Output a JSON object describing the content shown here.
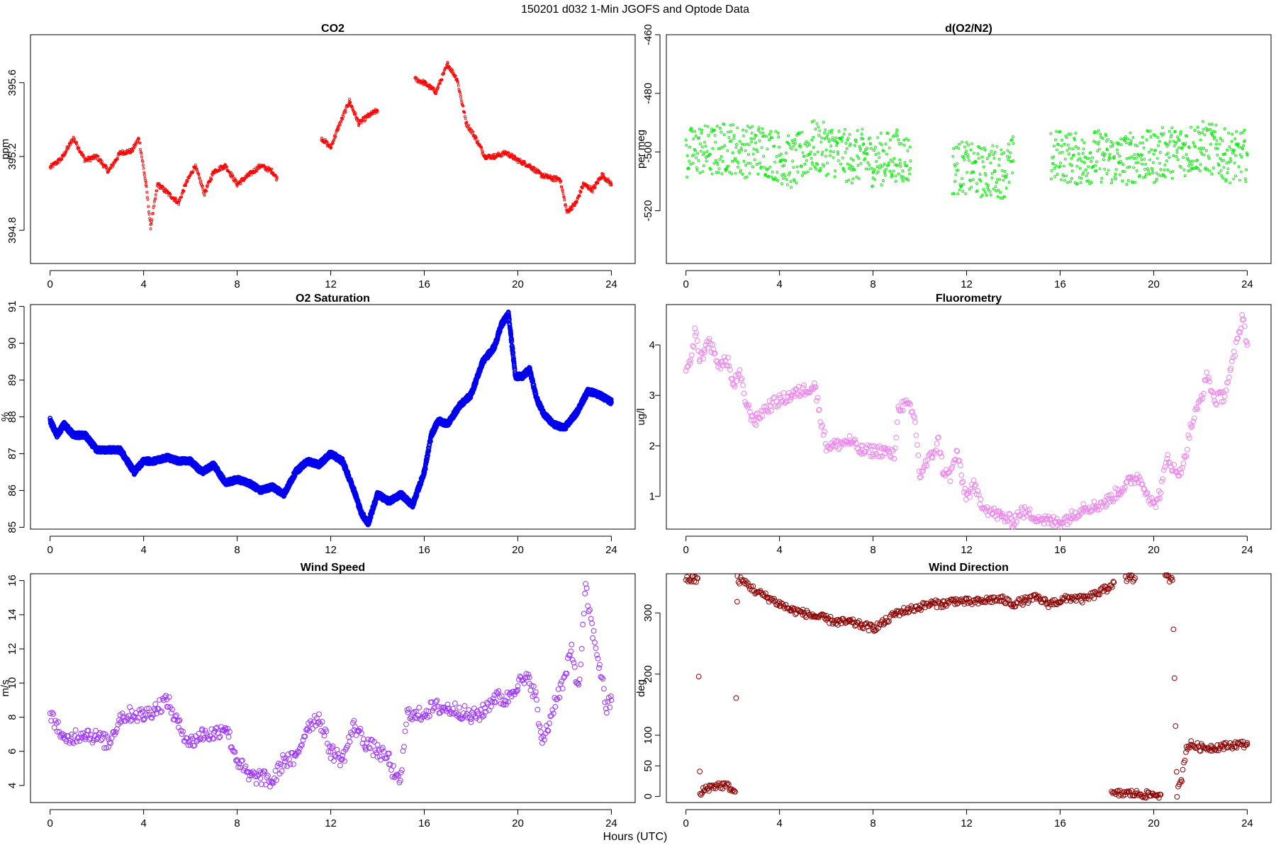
{
  "figure": {
    "title": "150201   d032   1-Min  JGOFS and Optode Data",
    "xlabel": "Hours (UTC)"
  },
  "chart_data": [
    {
      "id": "co2",
      "type": "scatter",
      "title": "CO2",
      "ylabel": "ppm",
      "color": "#ff0000",
      "marker": "small",
      "xlim": [
        0,
        24
      ],
      "ylim": [
        394.62,
        395.86
      ],
      "xticks": [
        0,
        4,
        8,
        12,
        16,
        20,
        24
      ],
      "yticks": [
        394.8,
        395.2,
        395.6
      ],
      "ytick_labels": [
        "394.8",
        "395.2",
        "395.6"
      ],
      "ytick_rotate": true,
      "x": [
        0.0,
        0.5,
        1.0,
        1.5,
        2.0,
        2.5,
        3.0,
        3.5,
        3.8,
        4.1,
        4.3,
        4.6,
        5.5,
        5.8,
        6.2,
        6.6,
        7.0,
        7.5,
        8.0,
        8.5,
        9.0,
        9.5,
        9.7,
        11.6,
        12.0,
        12.3,
        12.8,
        13.2,
        13.6,
        14.0,
        15.6,
        16.0,
        16.5,
        17.0,
        17.4,
        17.8,
        18.2,
        18.6,
        19.0,
        19.5,
        20.0,
        20.5,
        21.0,
        21.5,
        21.8,
        22.1,
        22.5,
        22.8,
        23.2,
        23.6,
        24.0
      ],
      "y": [
        395.14,
        395.19,
        395.3,
        395.18,
        395.2,
        395.12,
        395.22,
        395.23,
        395.3,
        395.05,
        394.82,
        395.05,
        394.95,
        395.05,
        395.15,
        395.0,
        395.12,
        395.15,
        395.05,
        395.1,
        395.15,
        395.12,
        395.08,
        395.3,
        395.25,
        395.35,
        395.5,
        395.38,
        395.42,
        395.45,
        395.62,
        395.6,
        395.55,
        395.7,
        395.62,
        395.38,
        395.3,
        395.2,
        395.2,
        395.22,
        395.18,
        395.15,
        395.1,
        395.08,
        395.08,
        394.9,
        394.95,
        395.05,
        395.02,
        395.1,
        395.05
      ]
    },
    {
      "id": "do2n2",
      "type": "scatter",
      "title": "d(O2/N2)",
      "ylabel": "per meg",
      "color": "#00ee00",
      "marker": "small",
      "xlim": [
        0,
        24
      ],
      "ylim": [
        -538,
        -460
      ],
      "xticks": [
        0,
        4,
        8,
        12,
        16,
        20,
        24
      ],
      "yticks": [
        -520,
        -500,
        -480,
        -460
      ],
      "ytick_labels": [
        "-520",
        "-500",
        "-480",
        "-460"
      ],
      "ytick_rotate": true,
      "x": [
        0.0,
        0.6,
        1.2,
        1.8,
        2.4,
        3.0,
        3.6,
        4.1,
        4.6,
        5.4,
        6.0,
        6.5,
        7.0,
        7.6,
        8.0,
        8.5,
        9.0,
        9.6,
        11.4,
        11.8,
        12.2,
        12.8,
        13.2,
        13.6,
        14.0,
        15.6,
        16.0,
        16.5,
        17.0,
        17.5,
        18.0,
        18.5,
        19.0,
        19.5,
        20.0,
        20.5,
        21.0,
        21.5,
        22.0,
        22.5,
        23.0,
        23.5,
        24.0
      ],
      "y": [
        -501,
        -499,
        -500,
        -498,
        -500,
        -499,
        -500,
        -502,
        -504,
        -498,
        -499,
        -500,
        -502,
        -501,
        -503,
        -502,
        -501,
        -503,
        -506,
        -505,
        -506,
        -507,
        -506,
        -507,
        -503,
        -502,
        -501,
        -502,
        -503,
        -501,
        -502,
        -503,
        -502,
        -501,
        -502,
        -500,
        -500,
        -499,
        -498,
        -499,
        -501,
        -502,
        -501
      ],
      "spread": 9
    },
    {
      "id": "o2sat",
      "type": "scatter",
      "title": "O2 Saturation",
      "ylabel": "%",
      "color": "#0000ee",
      "marker": "thick",
      "xlim": [
        0,
        24
      ],
      "ylim": [
        84.95,
        91.05
      ],
      "xticks": [
        0,
        4,
        8,
        12,
        16,
        20,
        24
      ],
      "yticks": [
        85,
        86,
        87,
        88,
        89,
        90,
        91
      ],
      "ytick_labels": [
        "85",
        "86",
        "87",
        "88",
        "89",
        "90",
        "91"
      ],
      "ytick_rotate": true,
      "x": [
        0.0,
        0.3,
        0.6,
        1.0,
        1.5,
        2.0,
        2.5,
        3.0,
        3.3,
        3.6,
        4.0,
        4.5,
        5.0,
        5.5,
        6.0,
        6.5,
        7.0,
        7.5,
        8.0,
        8.5,
        9.0,
        9.5,
        10.0,
        10.5,
        11.0,
        11.5,
        12.0,
        12.5,
        13.0,
        13.3,
        13.6,
        13.8,
        14.0,
        14.5,
        15.0,
        15.5,
        16.0,
        16.3,
        16.6,
        17.0,
        17.5,
        18.0,
        18.5,
        19.0,
        19.3,
        19.6,
        19.9,
        20.2,
        20.5,
        20.8,
        21.1,
        21.5,
        22.0,
        22.5,
        23.0,
        23.5,
        24.0
      ],
      "y": [
        87.9,
        87.5,
        87.8,
        87.5,
        87.5,
        87.1,
        87.1,
        87.1,
        86.8,
        86.5,
        86.8,
        86.8,
        86.9,
        86.8,
        86.8,
        86.5,
        86.7,
        86.2,
        86.3,
        86.2,
        86.0,
        86.1,
        85.9,
        86.5,
        86.8,
        86.7,
        87.0,
        86.8,
        86.0,
        85.4,
        85.1,
        85.5,
        85.9,
        85.7,
        85.9,
        85.6,
        86.5,
        87.5,
        87.9,
        87.8,
        88.3,
        88.6,
        89.5,
        89.9,
        90.5,
        90.8,
        89.1,
        89.1,
        89.3,
        88.5,
        88.1,
        87.8,
        87.7,
        88.1,
        88.7,
        88.6,
        88.4
      ],
      "spread": 0.07
    },
    {
      "id": "fluor",
      "type": "scatter",
      "title": "Fluorometry",
      "ylabel": "ug/l",
      "color": "#ee82ee",
      "marker": "open",
      "xlim": [
        0,
        24
      ],
      "ylim": [
        0.35,
        4.8
      ],
      "xticks": [
        0,
        4,
        8,
        12,
        16,
        20,
        24
      ],
      "yticks": [
        1,
        2,
        3,
        4
      ],
      "ytick_labels": [
        "1",
        "2",
        "3",
        "4"
      ],
      "ytick_rotate": false,
      "x": [
        0.0,
        0.2,
        0.4,
        0.6,
        0.8,
        1.0,
        1.2,
        1.5,
        1.8,
        2.0,
        2.3,
        2.6,
        2.8,
        3.0,
        3.3,
        3.6,
        4.0,
        4.5,
        5.0,
        5.5,
        5.7,
        6.0,
        6.3,
        7.0,
        7.5,
        8.0,
        8.5,
        8.9,
        9.1,
        9.5,
        9.8,
        10.0,
        10.2,
        10.5,
        10.8,
        11.0,
        11.3,
        11.6,
        11.8,
        12.0,
        12.3,
        12.6,
        13.0,
        13.5,
        14.0,
        14.3,
        15.0,
        15.5,
        16.0,
        16.5,
        17.0,
        17.5,
        18.0,
        18.5,
        19.0,
        19.3,
        19.6,
        20.0,
        20.3,
        20.6,
        21.0,
        21.3,
        21.6,
        22.0,
        22.3,
        22.6,
        23.0,
        23.3,
        23.6,
        23.8,
        24.0
      ],
      "y": [
        3.5,
        3.6,
        4.3,
        3.7,
        3.9,
        4.1,
        3.8,
        3.6,
        3.7,
        3.2,
        3.4,
        2.8,
        2.6,
        2.5,
        2.7,
        2.8,
        2.9,
        3.0,
        3.1,
        3.2,
        2.7,
        2.0,
        2.0,
        2.1,
        1.9,
        1.9,
        1.9,
        1.8,
        2.8,
        2.8,
        2.5,
        1.4,
        1.6,
        1.8,
        2.1,
        1.5,
        1.4,
        1.9,
        1.3,
        1.0,
        1.2,
        0.9,
        0.7,
        0.6,
        0.5,
        0.7,
        0.6,
        0.5,
        0.5,
        0.6,
        0.8,
        0.8,
        0.9,
        1.1,
        1.3,
        1.4,
        1.2,
        0.8,
        1.1,
        1.8,
        1.4,
        1.7,
        2.4,
        2.9,
        3.4,
        2.9,
        3.0,
        3.5,
        4.1,
        4.6,
        4.0
      ],
      "spread": 0.12
    },
    {
      "id": "windspd",
      "type": "scatter",
      "title": "Wind Speed",
      "ylabel": "m/s",
      "color": "#9b30ff",
      "marker": "open",
      "xlim": [
        0,
        24
      ],
      "ylim": [
        3.0,
        16.4
      ],
      "xticks": [
        0,
        4,
        8,
        12,
        16,
        20,
        24
      ],
      "yticks": [
        4,
        6,
        8,
        10,
        12,
        14,
        16
      ],
      "ytick_labels": [
        "4",
        "6",
        "8",
        "10",
        "12",
        "14",
        "16"
      ],
      "ytick_rotate": true,
      "x": [
        0.0,
        0.3,
        0.6,
        1.0,
        1.5,
        2.0,
        2.5,
        3.0,
        3.5,
        4.0,
        4.5,
        5.0,
        5.5,
        6.0,
        6.5,
        7.0,
        7.5,
        8.0,
        8.5,
        9.0,
        9.5,
        10.0,
        10.5,
        11.0,
        11.5,
        12.0,
        12.5,
        13.0,
        13.5,
        14.0,
        14.5,
        14.8,
        15.0,
        15.3,
        15.6,
        16.0,
        16.5,
        17.0,
        17.5,
        18.0,
        18.5,
        19.0,
        19.5,
        20.0,
        20.5,
        20.8,
        21.0,
        21.3,
        21.6,
        22.0,
        22.3,
        22.6,
        22.9,
        23.2,
        23.5,
        23.8,
        24.0
      ],
      "y": [
        8.0,
        7.6,
        6.5,
        6.9,
        7.1,
        6.8,
        6.5,
        8.0,
        8.2,
        8.1,
        8.5,
        9.0,
        7.5,
        6.5,
        7.0,
        7.0,
        7.5,
        5.5,
        4.5,
        4.5,
        4.2,
        5.5,
        5.5,
        7.5,
        8.0,
        6.0,
        5.5,
        7.5,
        6.5,
        6.0,
        5.5,
        4.2,
        4.5,
        8.5,
        8.0,
        8.3,
        8.6,
        8.5,
        8.4,
        8.0,
        8.3,
        9.2,
        9.0,
        10.0,
        10.2,
        9.0,
        6.5,
        7.5,
        9.0,
        10.2,
        12.0,
        9.5,
        15.5,
        13.0,
        11.0,
        8.5,
        9.0
      ],
      "spread": 0.45
    },
    {
      "id": "winddir",
      "type": "scatter",
      "title": "Wind Direction",
      "ylabel": "deg",
      "color": "#8b0000",
      "marker": "open",
      "xlim": [
        0,
        24
      ],
      "ylim": [
        -10,
        364
      ],
      "xticks": [
        0,
        4,
        8,
        12,
        16,
        20,
        24
      ],
      "yticks": [
        0,
        50,
        100,
        200,
        300
      ],
      "ytick_labels": [
        "0",
        "50",
        "100",
        "200",
        "300"
      ],
      "ytick_rotate": true,
      "x": [
        0.0,
        0.3,
        0.5,
        0.6,
        0.8,
        1.0,
        1.3,
        1.6,
        1.9,
        2.1,
        2.2,
        2.6,
        3.0,
        3.5,
        4.0,
        4.5,
        5.0,
        5.5,
        6.0,
        6.5,
        7.0,
        7.5,
        8.0,
        8.5,
        9.0,
        9.5,
        10.0,
        10.5,
        11.0,
        11.5,
        12.0,
        12.5,
        13.0,
        13.5,
        14.0,
        14.5,
        15.0,
        15.5,
        16.0,
        16.5,
        17.0,
        17.5,
        18.0,
        18.3,
        18.2,
        18.6,
        19.0,
        19.7,
        20.0,
        20.3,
        18.8,
        19.2,
        20.5,
        20.8,
        21.0,
        21.2,
        21.4,
        21.6,
        22.0,
        22.5,
        23.0,
        23.5,
        24.0
      ],
      "y": [
        355,
        355,
        355,
        2,
        12,
        15,
        18,
        18,
        15,
        5,
        355,
        348,
        335,
        325,
        315,
        305,
        300,
        295,
        290,
        285,
        285,
        280,
        275,
        285,
        300,
        305,
        310,
        315,
        315,
        320,
        318,
        318,
        322,
        322,
        315,
        320,
        325,
        315,
        320,
        325,
        322,
        330,
        340,
        350,
        3,
        5,
        5,
        3,
        3,
        3,
        355,
        357,
        357,
        357,
        5,
        30,
        80,
        85,
        80,
        80,
        82,
        85,
        85
      ],
      "spread": 6
    }
  ]
}
